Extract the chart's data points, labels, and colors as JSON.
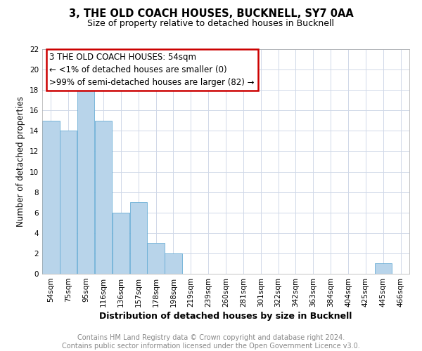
{
  "title": "3, THE OLD COACH HOUSES, BUCKNELL, SY7 0AA",
  "subtitle": "Size of property relative to detached houses in Bucknell",
  "xlabel": "Distribution of detached houses by size in Bucknell",
  "ylabel": "Number of detached properties",
  "bar_labels": [
    "54sqm",
    "75sqm",
    "95sqm",
    "116sqm",
    "136sqm",
    "157sqm",
    "178sqm",
    "198sqm",
    "219sqm",
    "239sqm",
    "260sqm",
    "281sqm",
    "301sqm",
    "322sqm",
    "342sqm",
    "363sqm",
    "384sqm",
    "404sqm",
    "425sqm",
    "445sqm",
    "466sqm"
  ],
  "bar_values": [
    15,
    14,
    18,
    15,
    6,
    7,
    3,
    2,
    0,
    0,
    0,
    0,
    0,
    0,
    0,
    0,
    0,
    0,
    0,
    1,
    0
  ],
  "bar_color": "#b8d4ea",
  "bar_edge_color": "#6aaed6",
  "ylim": [
    0,
    22
  ],
  "yticks": [
    0,
    2,
    4,
    6,
    8,
    10,
    12,
    14,
    16,
    18,
    20,
    22
  ],
  "annotation_lines": [
    "3 THE OLD COACH HOUSES: 54sqm",
    "← <1% of detached houses are smaller (0)",
    ">99% of semi-detached houses are larger (82) →"
  ],
  "annotation_box_color": "#ffffff",
  "annotation_box_edge_color": "#cc0000",
  "footer_lines": [
    "Contains HM Land Registry data © Crown copyright and database right 2024.",
    "Contains public sector information licensed under the Open Government Licence v3.0."
  ],
  "background_color": "#ffffff",
  "grid_color": "#d0d8e8",
  "title_fontsize": 10.5,
  "subtitle_fontsize": 9,
  "xlabel_fontsize": 9,
  "ylabel_fontsize": 8.5,
  "tick_fontsize": 7.5,
  "annotation_fontsize": 8.5,
  "footer_fontsize": 7
}
